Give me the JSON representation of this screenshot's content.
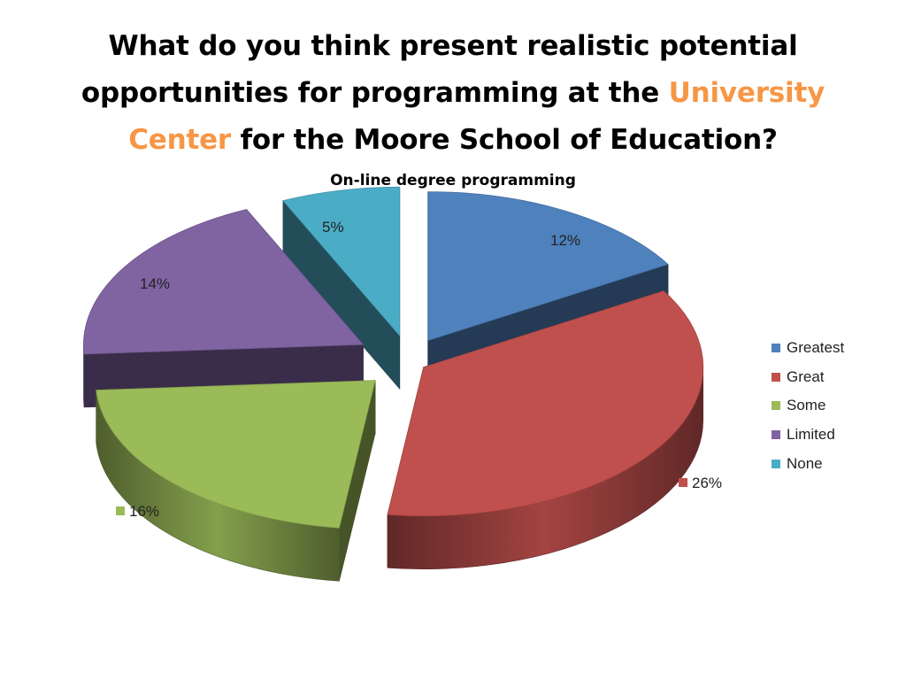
{
  "slide": {
    "title_line1": "What do you think present realistic potential",
    "title_line2a": "opportunities for programming at the ",
    "title_line2b": "University",
    "title_line3a": "Center",
    "title_line3b": " for the Moore School of Education?",
    "accent_color": "#f79646"
  },
  "chart_data": {
    "type": "pie",
    "style": "3d-exploded",
    "title": "On-line degree programming",
    "legend_position": "right",
    "categories": [
      "Greatest",
      "Great",
      "Some",
      "Limited",
      "None"
    ],
    "values": [
      12,
      26,
      16,
      14,
      5
    ],
    "data_labels": [
      "12%",
      "26%",
      "16%",
      "14%",
      "5%"
    ],
    "colors": [
      "#4f81bd",
      "#c0504d",
      "#9bbb59",
      "#8064a2",
      "#4bacc6"
    ]
  }
}
